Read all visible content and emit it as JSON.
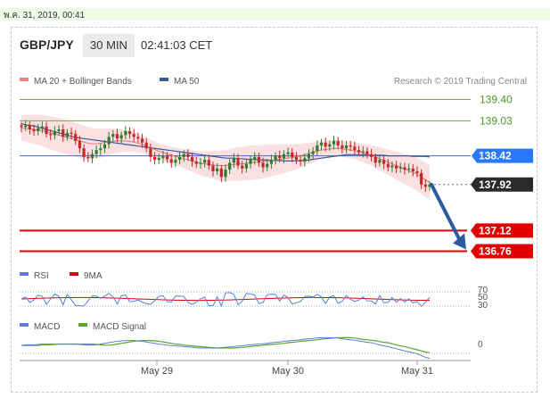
{
  "header": {
    "date_text": "พ.ค. 31, 2019, 00:41",
    "pair": "GBP/JPY",
    "timeframe": "30 MIN",
    "time": "02:41:03 CET"
  },
  "colors": {
    "candle_up": "#2e7d32",
    "candle_down": "#c62828",
    "bollinger": "#f6c6c6",
    "ma20": "#e57373",
    "ma50": "#3a5a9a",
    "resistance": "#6ab04c",
    "support": "#e00000",
    "pivot": "#3a6fc0",
    "arrow": "#2a5aa0",
    "rsi": "#5b7fd6",
    "rsi_ma": "#e00000",
    "macd": "#5b7fd6",
    "macd_signal": "#59a62d"
  },
  "chart_data": [
    {
      "type": "candlestick",
      "legend": [
        {
          "name": "MA 20 + Bollinger Bands",
          "color": "#f08080"
        },
        {
          "name": "MA 50",
          "color": "#3a5a9a"
        }
      ],
      "legend_position": "top-left",
      "credit": "Research © 2019 Trading Central",
      "x_ticks": [
        "May 29",
        "May 30",
        "May 31"
      ],
      "ylim": [
        136.6,
        139.5
      ],
      "close": [
        138.92,
        138.95,
        138.88,
        138.85,
        138.9,
        138.93,
        138.8,
        138.78,
        138.85,
        138.88,
        138.75,
        138.82,
        138.8,
        138.68,
        138.55,
        138.4,
        138.38,
        138.45,
        138.52,
        138.55,
        138.62,
        138.75,
        138.8,
        138.72,
        138.78,
        138.85,
        138.8,
        138.75,
        138.72,
        138.65,
        138.55,
        138.4,
        138.35,
        138.38,
        138.42,
        138.36,
        138.3,
        138.35,
        138.4,
        138.45,
        138.4,
        138.32,
        138.28,
        138.3,
        138.35,
        138.25,
        138.15,
        138.2,
        138.05,
        138.18,
        138.3,
        138.38,
        138.25,
        138.2,
        138.28,
        138.35,
        138.4,
        138.3,
        138.22,
        138.28,
        138.35,
        138.42,
        138.38,
        138.45,
        138.48,
        138.4,
        138.35,
        138.32,
        138.38,
        138.45,
        138.5,
        138.6,
        138.65,
        138.58,
        138.62,
        138.68,
        138.6,
        138.55,
        138.6,
        138.58,
        138.52,
        138.48,
        138.5,
        138.45,
        138.4,
        138.3,
        138.35,
        138.28,
        138.22,
        138.25,
        138.2,
        138.22,
        138.18,
        138.2,
        138.15,
        138.12,
        137.92,
        137.88,
        137.92
      ],
      "series": [
        {
          "name": "MA 20 + Bollinger Bands",
          "ma": [
            138.9,
            138.9,
            138.89,
            138.88,
            138.87,
            138.86,
            138.84,
            138.82,
            138.8,
            138.78,
            138.76,
            138.74,
            138.72,
            138.7,
            138.68,
            138.66,
            138.64,
            138.63,
            138.63,
            138.64,
            138.65,
            138.66,
            138.67,
            138.68,
            138.68,
            138.68,
            138.67,
            138.66,
            138.64,
            138.62,
            138.59,
            138.56,
            138.53,
            138.5,
            138.48,
            138.45,
            138.43,
            138.41,
            138.39,
            138.37,
            138.35,
            138.33,
            138.31,
            138.29,
            138.28,
            138.27,
            138.26,
            138.25,
            138.25,
            138.25,
            138.26,
            138.27,
            138.28,
            138.28,
            138.29,
            138.3,
            138.31,
            138.31,
            138.32,
            138.33,
            138.34,
            138.35,
            138.36,
            138.37,
            138.38,
            138.39,
            138.4,
            138.42,
            138.44,
            138.46,
            138.48,
            138.5,
            138.52,
            138.53,
            138.54,
            138.55,
            138.55,
            138.54,
            138.53,
            138.52,
            138.51,
            138.49,
            138.47,
            138.45,
            138.43,
            138.4,
            138.37,
            138.34,
            138.31,
            138.28,
            138.25,
            138.22,
            138.19,
            138.16,
            138.13,
            138.1,
            138.05,
            138.0,
            137.96
          ]
        },
        {
          "name": "MA 50",
          "ma": [
            138.98,
            138.96,
            138.95,
            138.94,
            138.92,
            138.9,
            138.88,
            138.86,
            138.84,
            138.82,
            138.8,
            138.78,
            138.76,
            138.74,
            138.73,
            138.72,
            138.71,
            138.7,
            138.69,
            138.68,
            138.67,
            138.66,
            138.65,
            138.64,
            138.63,
            138.62,
            138.61,
            138.6,
            138.59,
            138.58,
            138.57,
            138.56,
            138.55,
            138.54,
            138.53,
            138.52,
            138.51,
            138.5,
            138.49,
            138.48,
            138.47,
            138.46,
            138.45,
            138.44,
            138.43,
            138.42,
            138.41,
            138.4,
            138.39,
            138.38,
            138.38,
            138.38,
            138.37,
            138.37,
            138.36,
            138.36,
            138.36,
            138.35,
            138.35,
            138.35,
            138.34,
            138.34,
            138.34,
            138.33,
            138.33,
            138.33,
            138.33,
            138.34,
            138.34,
            138.35,
            138.36,
            138.37,
            138.38,
            138.39,
            138.4,
            138.41,
            138.42,
            138.43,
            138.44,
            138.44,
            138.44,
            138.44,
            138.44,
            138.44,
            138.43,
            138.43,
            138.43,
            138.43,
            138.42,
            138.42,
            138.42,
            138.42,
            138.42,
            138.42,
            138.41,
            138.41,
            138.41,
            138.41,
            138.4
          ]
        }
      ],
      "levels": [
        {
          "value": 139.4,
          "label": "139.40",
          "kind": "resistance"
        },
        {
          "value": 139.03,
          "label": "139.03",
          "kind": "resistance"
        },
        {
          "value": 138.42,
          "label": "138.42",
          "kind": "pivot"
        },
        {
          "value": 137.92,
          "label": "137.92",
          "kind": "last"
        },
        {
          "value": 137.12,
          "label": "137.12",
          "kind": "support"
        },
        {
          "value": 136.76,
          "label": "136.76",
          "kind": "support"
        }
      ],
      "arrow": {
        "from": 137.92,
        "to": 136.76
      }
    },
    {
      "type": "line",
      "legend": [
        {
          "name": "RSI",
          "color": "#5b7fd6"
        },
        {
          "name": "9MA",
          "color": "#e00000"
        }
      ],
      "y_ticks": [
        "70",
        "50",
        "30"
      ],
      "ylim": [
        25,
        75
      ]
    },
    {
      "type": "line",
      "legend": [
        {
          "name": "MACD",
          "color": "#5b7fd6"
        },
        {
          "name": "MACD Signal",
          "color": "#59a62d"
        }
      ],
      "y_ticks": [
        "0"
      ]
    }
  ]
}
